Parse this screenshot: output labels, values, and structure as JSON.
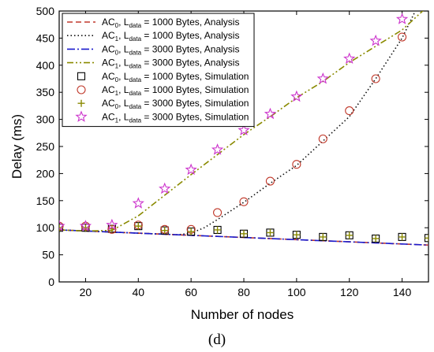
{
  "panel_label": "(d)",
  "chart_data": {
    "type": "line",
    "xlabel": "Number of nodes",
    "ylabel": "Delay (ms)",
    "xlim": [
      10,
      150
    ],
    "ylim": [
      0,
      500
    ],
    "x_ticks": [
      20,
      40,
      60,
      80,
      100,
      120,
      140
    ],
    "y_ticks": [
      0,
      50,
      100,
      150,
      200,
      250,
      300,
      350,
      400,
      450,
      500
    ],
    "legend_position": "top-left",
    "grid": false,
    "series": [
      {
        "name": "AC0, Ldata = 1000 Bytes, Analysis",
        "ac": "0",
        "ldata": "1000",
        "kind": "Analysis",
        "style": "dashed",
        "color": "#c0392b",
        "x": [
          10,
          20,
          30,
          40,
          50,
          60,
          70,
          80,
          90,
          100,
          110,
          120,
          130,
          140,
          150
        ],
        "y": [
          96,
          94,
          92,
          90,
          88,
          86,
          84,
          82,
          80,
          78,
          76,
          74,
          72,
          70,
          68
        ]
      },
      {
        "name": "AC1, Ldata = 1000 Bytes, Analysis",
        "ac": "1",
        "ldata": "1000",
        "kind": "Analysis",
        "style": "dotted",
        "color": "#111111",
        "x": [
          10,
          20,
          30,
          40,
          50,
          55,
          60,
          65,
          70,
          80,
          90,
          100,
          110,
          120,
          130,
          140,
          145
        ],
        "y": [
          96,
          94,
          92,
          90,
          88,
          87,
          90,
          100,
          115,
          147,
          182,
          215,
          260,
          305,
          375,
          450,
          500
        ]
      },
      {
        "name": "AC0, Ldata = 3000 Bytes, Analysis",
        "ac": "0",
        "ldata": "3000",
        "kind": "Analysis",
        "style": "dashdot",
        "color": "#1a1acc",
        "x": [
          10,
          20,
          30,
          40,
          50,
          60,
          70,
          80,
          90,
          100,
          110,
          120,
          130,
          140,
          150
        ],
        "y": [
          96,
          94,
          92,
          90,
          88,
          86,
          84,
          82,
          80,
          78,
          76,
          74,
          72,
          70,
          68
        ]
      },
      {
        "name": "AC1, Ldata = 3000 Bytes, Analysis",
        "ac": "1",
        "ldata": "3000",
        "kind": "Analysis",
        "style": "dashdotdot",
        "color": "#8a8a00",
        "x": [
          10,
          20,
          30,
          40,
          50,
          60,
          70,
          80,
          90,
          100,
          110,
          120,
          130,
          140,
          150
        ],
        "y": [
          96,
          94,
          95,
          122,
          160,
          198,
          235,
          272,
          305,
          340,
          370,
          405,
          435,
          465,
          510
        ]
      },
      {
        "name": "AC0, Ldata = 1000 Bytes, Simulation",
        "ac": "0",
        "ldata": "1000",
        "kind": "Simulation",
        "marker": "square",
        "color": "#000000",
        "x": [
          10,
          20,
          30,
          40,
          50,
          60,
          70,
          80,
          90,
          100,
          110,
          120,
          130,
          140,
          150
        ],
        "y": [
          100,
          100,
          98,
          103,
          95,
          93,
          96,
          89,
          91,
          87,
          83,
          86,
          80,
          83,
          81
        ]
      },
      {
        "name": "AC1, Ldata = 1000 Bytes, Simulation",
        "ac": "1",
        "ldata": "1000",
        "kind": "Simulation",
        "marker": "circle",
        "color": "#c0392b",
        "x": [
          10,
          20,
          30,
          40,
          50,
          60,
          70,
          80,
          90,
          100,
          110,
          120,
          130,
          140
        ],
        "y": [
          103,
          103,
          97,
          105,
          97,
          97,
          128,
          148,
          186,
          217,
          264,
          316,
          375,
          452
        ]
      },
      {
        "name": "AC0, Ldata = 3000 Bytes, Simulation",
        "ac": "0",
        "ldata": "3000",
        "kind": "Simulation",
        "marker": "plus",
        "color": "#8a8a00",
        "x": [
          10,
          20,
          30,
          40,
          50,
          60,
          70,
          80,
          90,
          100,
          110,
          120,
          130,
          140,
          150
        ],
        "y": [
          100,
          100,
          98,
          103,
          95,
          93,
          96,
          89,
          91,
          87,
          83,
          86,
          80,
          83,
          81
        ]
      },
      {
        "name": "AC1, Ldata = 3000 Bytes, Simulation",
        "ac": "1",
        "ldata": "3000",
        "kind": "Simulation",
        "marker": "star",
        "color": "#cc33cc",
        "x": [
          10,
          20,
          30,
          40,
          50,
          60,
          70,
          80,
          90,
          100,
          110,
          120,
          130,
          140
        ],
        "y": [
          103,
          103,
          105,
          145,
          172,
          207,
          244,
          280,
          310,
          342,
          375,
          412,
          445,
          485
        ]
      }
    ]
  }
}
